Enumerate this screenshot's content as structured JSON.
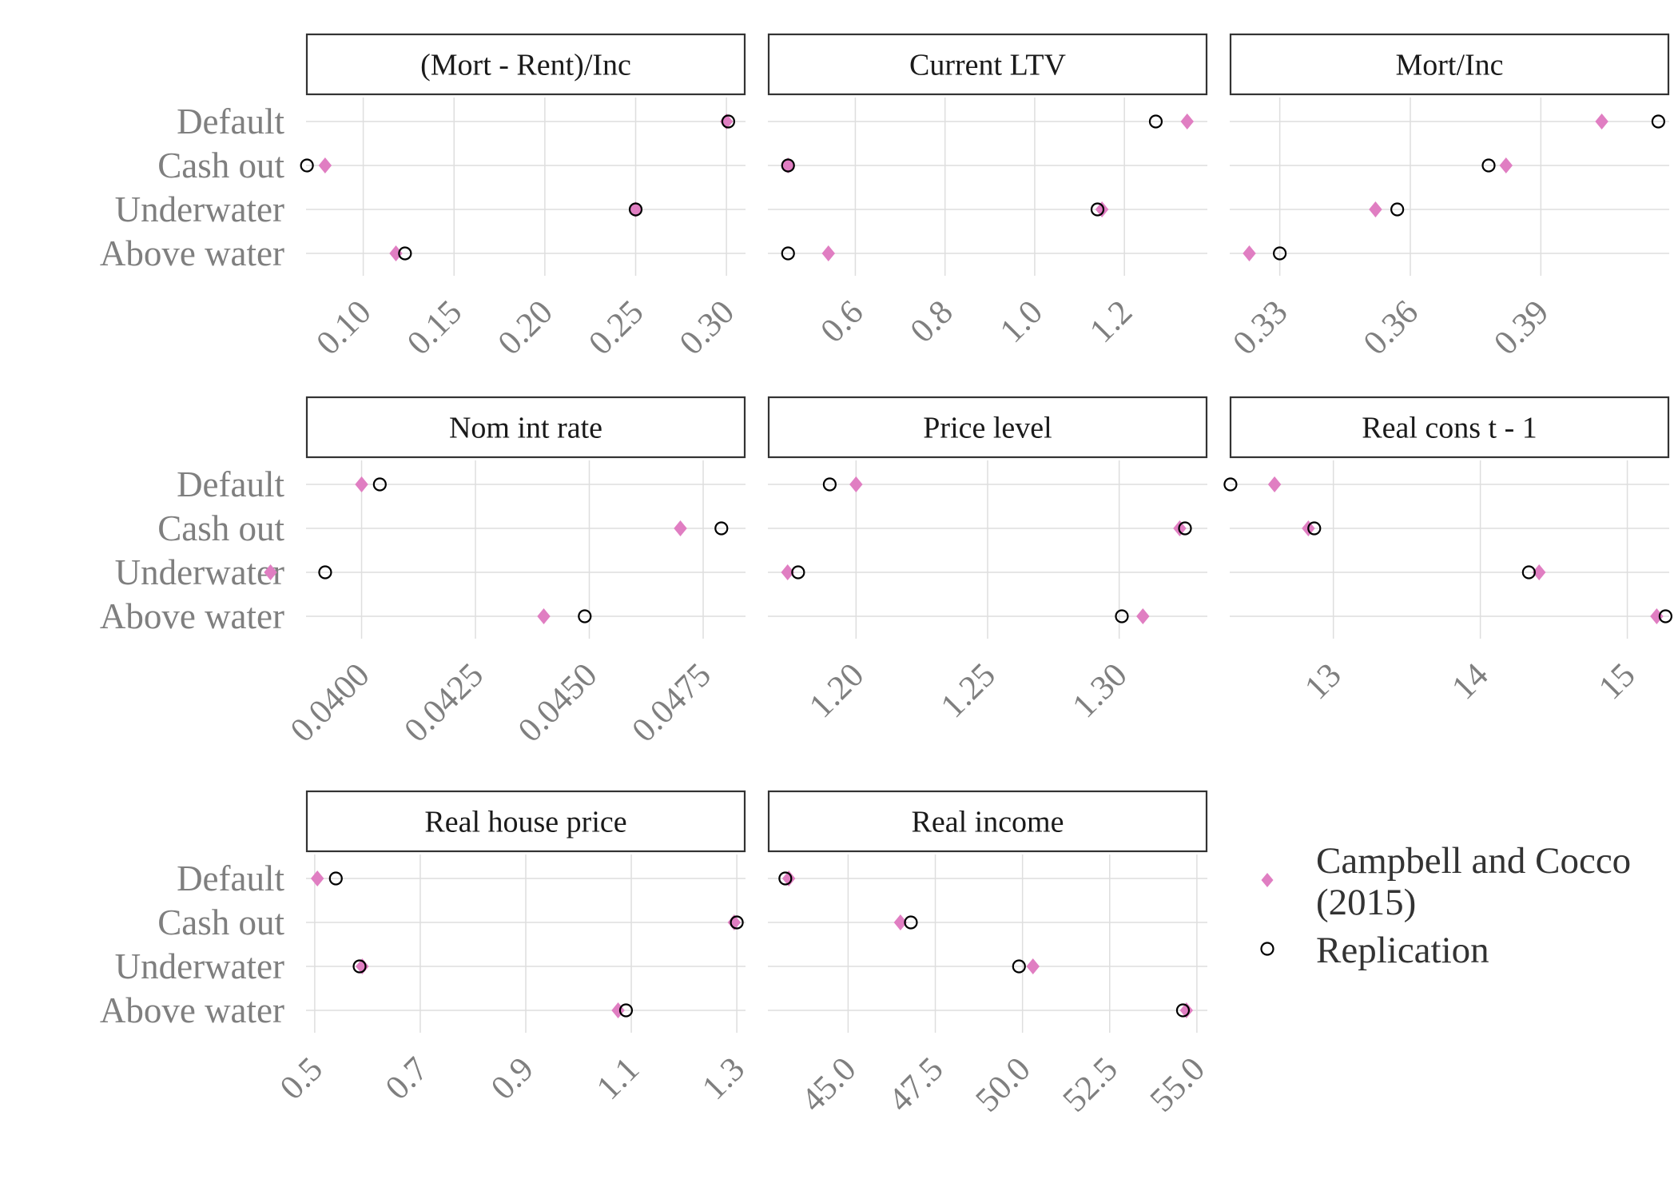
{
  "categories": [
    "Default",
    "Cash out",
    "Underwater",
    "Above water"
  ],
  "legend": {
    "position": "right",
    "items": [
      {
        "label_lines": [
          "Campbell and Cocco",
          "(2015)"
        ],
        "shape": "diamond",
        "color": "#e07ec2"
      },
      {
        "label_lines": [
          "Replication"
        ],
        "shape": "circle",
        "color": "#000000"
      }
    ]
  },
  "colors": {
    "campbell_cocco": "#e07ec2",
    "replication": "#000000",
    "strip_border": "#333333",
    "grid": "#dedede",
    "tick_text": "#7f7f7f"
  },
  "chart_data": [
    {
      "type": "scatter",
      "title": "(Mort - Rent)/Inc",
      "xlim": [
        0.0685,
        0.3105
      ],
      "xticks": [
        0.1,
        0.15,
        0.2,
        0.25,
        0.3
      ],
      "xtick_labels": [
        "0.10",
        "0.15",
        "0.20",
        "0.25",
        "0.30"
      ],
      "series": [
        {
          "name": "Campbell and Cocco (2015)",
          "values": [
            0.3,
            0.079,
            0.25,
            0.118
          ]
        },
        {
          "name": "Replication",
          "values": [
            0.301,
            0.069,
            0.25,
            0.123
          ]
        }
      ]
    },
    {
      "type": "scatter",
      "title": "Current LTV",
      "xlim": [
        0.405,
        1.385
      ],
      "xticks": [
        0.6,
        0.8,
        1.0,
        1.2
      ],
      "xtick_labels": [
        "0.6",
        "0.8",
        "1.0",
        "1.2"
      ],
      "series": [
        {
          "name": "Campbell and Cocco (2015)",
          "values": [
            1.34,
            0.45,
            1.15,
            0.54
          ]
        },
        {
          "name": "Replication",
          "values": [
            1.27,
            0.45,
            1.14,
            0.45
          ]
        }
      ]
    },
    {
      "type": "scatter",
      "title": "Mort/Inc",
      "xlim": [
        0.3185,
        0.4195
      ],
      "xticks": [
        0.33,
        0.36,
        0.39
      ],
      "xtick_labels": [
        "0.33",
        "0.36",
        "0.39"
      ],
      "series": [
        {
          "name": "Campbell and Cocco (2015)",
          "values": [
            0.404,
            0.382,
            0.352,
            0.323
          ]
        },
        {
          "name": "Replication",
          "values": [
            0.417,
            0.378,
            0.357,
            0.33
          ]
        }
      ]
    },
    {
      "type": "scatter",
      "title": "Nom int rate",
      "xlim": [
        0.03878,
        0.04843
      ],
      "xticks": [
        0.04,
        0.0425,
        0.045,
        0.0475
      ],
      "xtick_labels": [
        "0.0400",
        "0.0425",
        "0.0450",
        "0.0475"
      ],
      "series": [
        {
          "name": "Campbell and Cocco (2015)",
          "values": [
            0.04,
            0.047,
            0.038,
            0.044
          ]
        },
        {
          "name": "Replication",
          "values": [
            0.0404,
            0.0479,
            0.0392,
            0.0449
          ]
        }
      ]
    },
    {
      "type": "scatter",
      "title": "Price level",
      "xlim": [
        1.1665,
        1.3335
      ],
      "xticks": [
        1.2,
        1.25,
        1.3
      ],
      "xtick_labels": [
        "1.20",
        "1.25",
        "1.30"
      ],
      "series": [
        {
          "name": "Campbell and Cocco (2015)",
          "values": [
            1.2,
            1.323,
            1.174,
            1.309
          ]
        },
        {
          "name": "Replication",
          "values": [
            1.19,
            1.325,
            1.178,
            1.301
          ]
        }
      ]
    },
    {
      "type": "scatter",
      "title": "Real cons t - 1",
      "xlim": [
        12.295,
        15.285
      ],
      "xticks": [
        13,
        14,
        15
      ],
      "xtick_labels": [
        "13",
        "14",
        "15"
      ],
      "series": [
        {
          "name": "Campbell and Cocco (2015)",
          "values": [
            12.6,
            12.83,
            14.4,
            15.2
          ]
        },
        {
          "name": "Replication",
          "values": [
            12.3,
            12.87,
            14.33,
            15.26
          ]
        }
      ]
    },
    {
      "type": "scatter",
      "title": "Real house price",
      "xlim": [
        0.4835,
        1.3165
      ],
      "xticks": [
        0.5,
        0.7,
        0.9,
        1.1,
        1.3
      ],
      "xtick_labels": [
        "0.5",
        "0.7",
        "0.9",
        "1.1",
        "1.3"
      ],
      "series": [
        {
          "name": "Campbell and Cocco (2015)",
          "values": [
            0.505,
            1.295,
            0.59,
            1.075
          ]
        },
        {
          "name": "Replication",
          "values": [
            0.54,
            1.3,
            0.585,
            1.09
          ]
        }
      ]
    },
    {
      "type": "scatter",
      "title": "Real income",
      "xlim": [
        42.7,
        55.3
      ],
      "xticks": [
        45.0,
        47.5,
        50.0,
        52.5,
        55.0
      ],
      "xtick_labels": [
        "45.0",
        "47.5",
        "50.0",
        "52.5",
        "55.0"
      ],
      "series": [
        {
          "name": "Campbell and Cocco (2015)",
          "values": [
            43.3,
            46.5,
            50.3,
            54.7
          ]
        },
        {
          "name": "Replication",
          "values": [
            43.2,
            46.8,
            49.9,
            54.6
          ]
        }
      ]
    }
  ]
}
